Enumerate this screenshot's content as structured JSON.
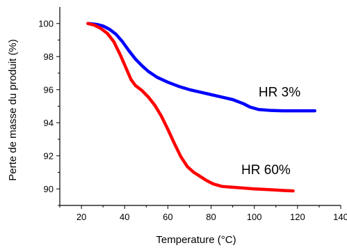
{
  "chart_data": {
    "type": "line",
    "title": "",
    "xlabel": "Temperature (°C)",
    "ylabel": "Perte de masse du produit (%)",
    "xlim": [
      10,
      140
    ],
    "ylim": [
      89,
      101
    ],
    "x_ticks": [
      20,
      40,
      60,
      80,
      100,
      120,
      140
    ],
    "y_ticks": [
      90,
      92,
      94,
      96,
      98,
      100
    ],
    "grid": false,
    "series": [
      {
        "name": "HR 3%",
        "color": "#0000ff",
        "points": [
          [
            23,
            100.0
          ],
          [
            27,
            99.95
          ],
          [
            30,
            99.85
          ],
          [
            33,
            99.65
          ],
          [
            36,
            99.35
          ],
          [
            39,
            98.9
          ],
          [
            42,
            98.35
          ],
          [
            45,
            97.85
          ],
          [
            48,
            97.45
          ],
          [
            51,
            97.1
          ],
          [
            55,
            96.75
          ],
          [
            60,
            96.45
          ],
          [
            65,
            96.2
          ],
          [
            70,
            96.0
          ],
          [
            75,
            95.85
          ],
          [
            80,
            95.7
          ],
          [
            85,
            95.55
          ],
          [
            90,
            95.4
          ],
          [
            95,
            95.15
          ],
          [
            98,
            94.95
          ],
          [
            102,
            94.8
          ],
          [
            107,
            94.75
          ],
          [
            113,
            94.72
          ],
          [
            120,
            94.72
          ],
          [
            128,
            94.72
          ]
        ]
      },
      {
        "name": "HR 60%",
        "color": "#ff0000",
        "points": [
          [
            23,
            100.0
          ],
          [
            26,
            99.9
          ],
          [
            29,
            99.7
          ],
          [
            32,
            99.4
          ],
          [
            35,
            98.9
          ],
          [
            38,
            98.1
          ],
          [
            41,
            97.2
          ],
          [
            43,
            96.6
          ],
          [
            45,
            96.25
          ],
          [
            48,
            95.95
          ],
          [
            51,
            95.55
          ],
          [
            54,
            95.05
          ],
          [
            57,
            94.4
          ],
          [
            60,
            93.6
          ],
          [
            63,
            92.75
          ],
          [
            66,
            91.95
          ],
          [
            69,
            91.35
          ],
          [
            72,
            91.0
          ],
          [
            75,
            90.75
          ],
          [
            78,
            90.5
          ],
          [
            81,
            90.3
          ],
          [
            85,
            90.15
          ],
          [
            90,
            90.1
          ],
          [
            95,
            90.05
          ],
          [
            100,
            90.0
          ],
          [
            105,
            89.97
          ],
          [
            110,
            89.93
          ],
          [
            114,
            89.9
          ],
          [
            118,
            89.88
          ]
        ]
      }
    ],
    "annotations": [
      {
        "text": "HR 3%",
        "x": 102,
        "y": 95.6
      },
      {
        "text": "HR 60%",
        "x": 94,
        "y": 90.9
      }
    ]
  }
}
